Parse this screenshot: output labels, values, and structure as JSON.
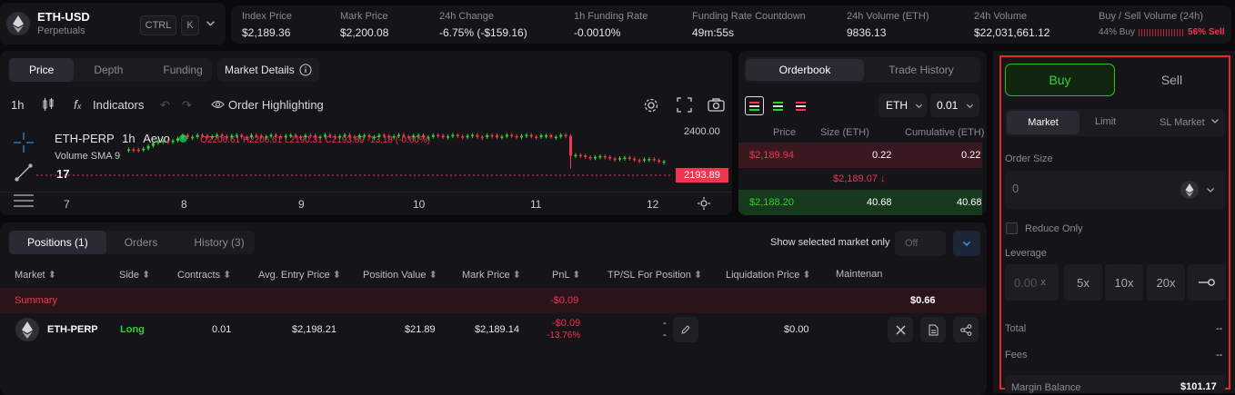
{
  "header": {
    "symbol": "ETH-USD",
    "subtitle": "Perpetuals",
    "kbd_ctrl": "CTRL",
    "kbd_k": "K",
    "stats": [
      {
        "label": "Index Price",
        "value": "$2,189.36",
        "color": "#e6e6e6"
      },
      {
        "label": "Mark Price",
        "value": "$2,200.08",
        "color": "#e6e6e6"
      },
      {
        "label": "24h Change",
        "value": "-6.75% (-$159.16)",
        "color": "#f0364f"
      },
      {
        "label": "1h Funding Rate",
        "value": "-0.0010%",
        "color": "#f0364f"
      },
      {
        "label": "Funding Rate Countdown",
        "value": "49m:55s",
        "color": "#e6e6e6"
      },
      {
        "label": "24h Volume (ETH)",
        "value": "9836.13",
        "color": "#e6e6e6"
      },
      {
        "label": "24h Volume",
        "value": "$22,031,661.12",
        "color": "#e6e6e6"
      }
    ],
    "buy_sell": {
      "label": "Buy / Sell Volume (24h)",
      "buy": "44% Buy",
      "sell": "56% Sell",
      "buy_fraction": 0.44
    }
  },
  "chart_tabs": [
    "Price",
    "Depth",
    "Funding"
  ],
  "market_details": "Market Details",
  "chart_toolbar": {
    "interval": "1h",
    "indicators": "Indicators",
    "highlight": "Order Highlighting"
  },
  "chart": {
    "symbol": "ETH-PERP",
    "interval": "1h",
    "exchange": "Aevo",
    "ohlc": "O2206.61 H2206.61 L2190.31 C2193.89 -13.18 (-0.60%)",
    "sma": "Volume SMA 9",
    "price_top": "2400.00",
    "price_now": "2193.89",
    "x_ticks": [
      "7",
      "8",
      "9",
      "10",
      "11",
      "12"
    ]
  },
  "orderbook": {
    "tabs": [
      "Orderbook",
      "Trade History"
    ],
    "asset": "ETH",
    "step": "0.01",
    "cols": [
      "Price",
      "Size (ETH)",
      "Cumulative (ETH)"
    ],
    "ask": {
      "price": "$2,189.94",
      "size": "0.22",
      "cum": "0.22"
    },
    "mid": "$2,189.07 ↓",
    "bid": {
      "price": "$2,188.20",
      "size": "40.68",
      "cum": "40.68"
    }
  },
  "positions": {
    "tabs": [
      "Positions (1)",
      "Orders",
      "History (3)"
    ],
    "show_selected": "Show selected market only",
    "toggle": "Off",
    "cols": [
      "Market",
      "Side",
      "Contracts",
      "Avg. Entry Price",
      "Position Value",
      "Mark Price",
      "PnL",
      "TP/SL For Position",
      "Liquidation Price",
      "Maintenan"
    ],
    "summary": {
      "label": "Summary",
      "pnl": "-$0.09",
      "maint": "$0.66"
    },
    "row": {
      "market": "ETH-PERP",
      "side": "Long",
      "contracts": "0.01",
      "entry": "$2,198.21",
      "value": "$21.89",
      "mark": "$2,189.14",
      "pnl": "-$0.09",
      "pnl_pct": "-13.76%",
      "tpsl1": "-",
      "tpsl2": "-",
      "liq": "$0.00"
    }
  },
  "order_form": {
    "buy": "Buy",
    "sell": "Sell",
    "types": [
      "Market",
      "Limit",
      "SL Market"
    ],
    "size_label": "Order Size",
    "size_placeholder": "0",
    "reduce_only": "Reduce Only",
    "leverage_label": "Leverage",
    "leverage_placeholder": "0.00",
    "leverage_x": "x",
    "leverage_opts": [
      "5x",
      "10x",
      "20x"
    ],
    "total_label": "Total",
    "total_value": "--",
    "fees_label": "Fees",
    "fees_value": "--",
    "margin_label": "Margin Balance",
    "margin_value": "$101.17"
  }
}
